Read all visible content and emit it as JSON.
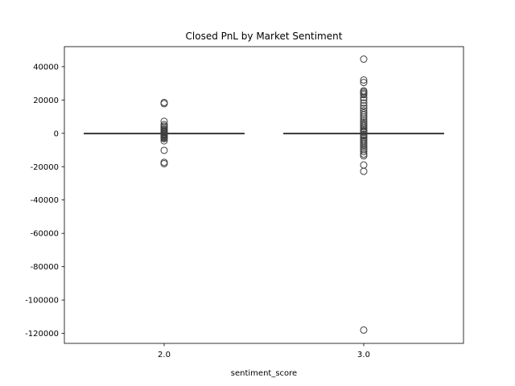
{
  "chart_data": {
    "type": "box",
    "title": "Closed PnL by Market Sentiment",
    "xlabel": "sentiment_score",
    "ylabel": "",
    "ylim": [
      -126000,
      52000
    ],
    "yticks": [
      40000,
      20000,
      0,
      -20000,
      -40000,
      -60000,
      -80000,
      -100000,
      -120000
    ],
    "grid": false,
    "legend": false,
    "colors": {
      "box": "#3f3f3f",
      "frame": "#000000"
    },
    "groups": [
      {
        "category": "2.0",
        "whisker_low": 0,
        "q1": 0,
        "median": 0,
        "q3": 0,
        "whisker_high": 0,
        "outliers": [
          18500,
          17800,
          7200,
          5200,
          4300,
          3500,
          2600,
          2000,
          1500,
          1000,
          600,
          300,
          -300,
          -600,
          -1100,
          -1600,
          -2100,
          -2600,
          -3200,
          -4500,
          -10200,
          -17400,
          -18200
        ]
      },
      {
        "category": "3.0",
        "whisker_low": 0,
        "q1": 0,
        "median": 0,
        "q3": 0,
        "whisker_high": 0,
        "outliers": [
          44500,
          32000,
          30500,
          25500,
          24800,
          24000,
          23200,
          21500,
          20000,
          18200,
          16500,
          15000,
          13500,
          12200,
          11000,
          9800,
          8600,
          7500,
          6500,
          5500,
          4600,
          3700,
          2800,
          2000,
          1300,
          700,
          -700,
          -1400,
          -2200,
          -3000,
          -3900,
          -4800,
          -5800,
          -6800,
          -7800,
          -8800,
          -9800,
          -11000,
          -12500,
          -13500,
          -19000,
          -22800,
          -118000
        ]
      }
    ]
  }
}
